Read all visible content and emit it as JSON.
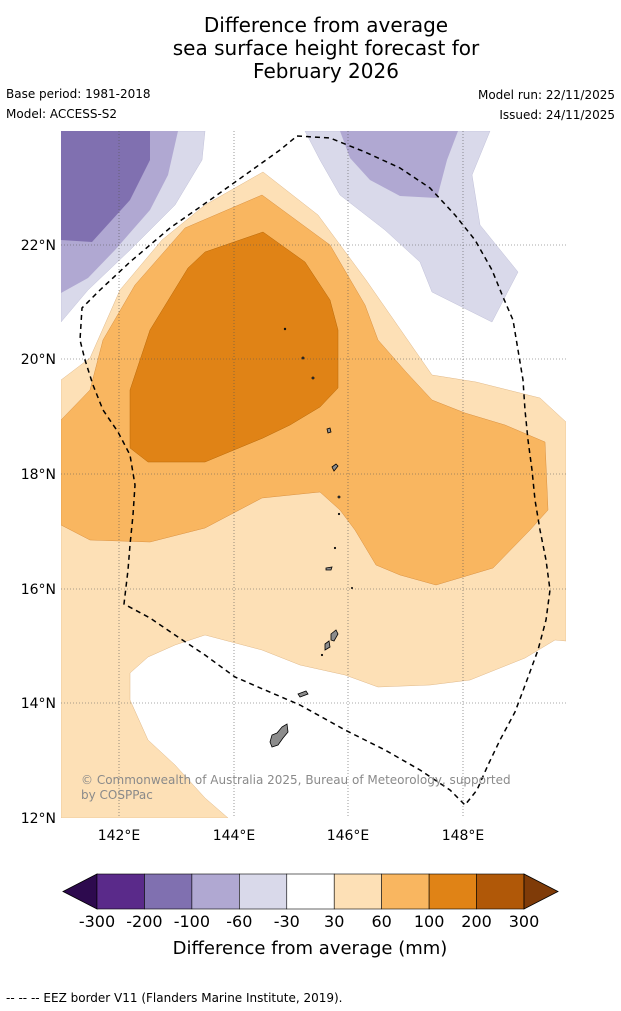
{
  "header": {
    "title_lines": [
      "Difference from average",
      "sea surface height forecast for",
      "February 2026"
    ],
    "base_period": "Base period: 1981-2018",
    "model": "Model: ACCESS-S2",
    "model_run": "Model run: 22/11/2025",
    "issued": "Issued: 24/11/2025"
  },
  "map": {
    "x_ticks": [
      "142°E",
      "144°E",
      "146°E",
      "148°E"
    ],
    "y_ticks": [
      "22°N",
      "20°N",
      "18°N",
      "16°N",
      "14°N",
      "12°N"
    ],
    "copyright_lines": [
      "© Commonwealth of Australia 2025, Bureau of Meteorology, supported",
      "by COSPPac"
    ]
  },
  "colorbar": {
    "title": "Difference from average (mm)",
    "labels": [
      "-300",
      "-200",
      "-100",
      "-60",
      "-30",
      "30",
      "60",
      "100",
      "200",
      "300"
    ],
    "colors": [
      "#2d0a4e",
      "#5a2a8a",
      "#8070b0",
      "#b0a8d2",
      "#d9d9ea",
      "#ffffff",
      "#fde0b6",
      "#f9b660",
      "#e08316",
      "#b05808",
      "#7f3b08"
    ]
  },
  "footer": {
    "eez_note": "--  --  -- EEZ border V11 (Flanders Marine Institute, 2019)."
  }
}
